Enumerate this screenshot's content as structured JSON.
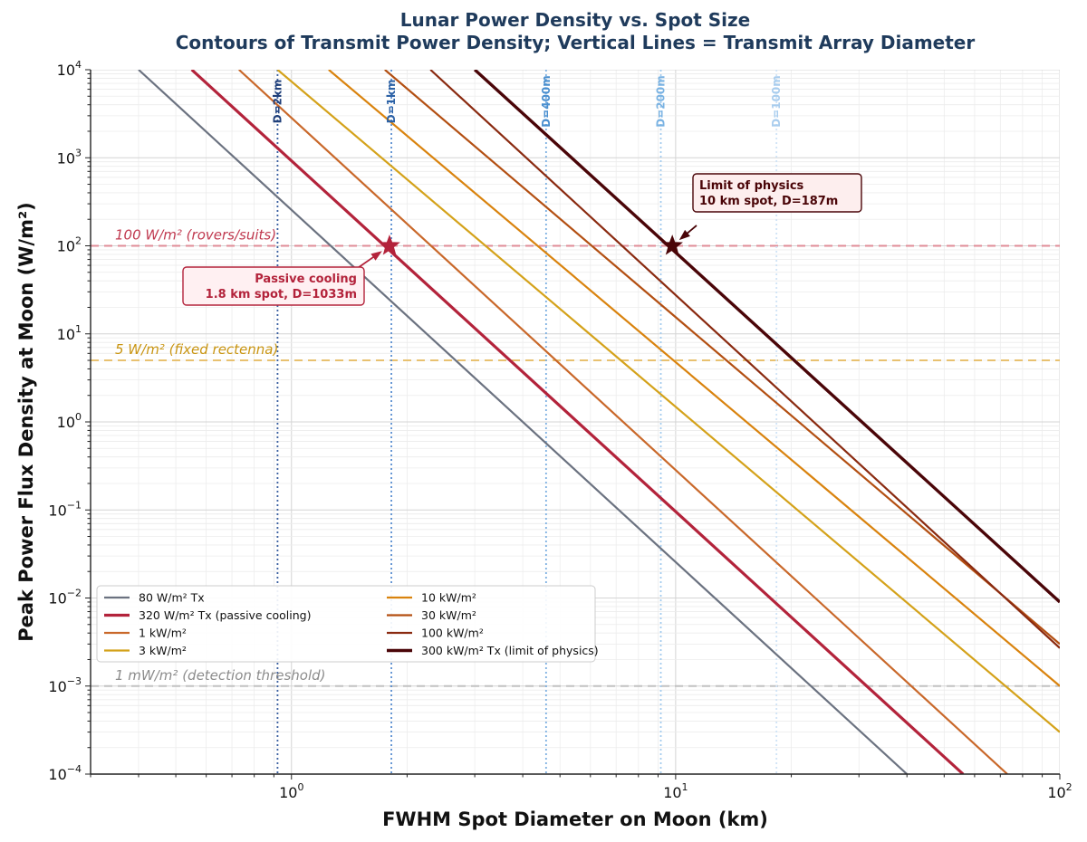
{
  "colors": {
    "title": "#1f3b5c",
    "grid_major": "#d4d4d4",
    "grid_minor": "#ececec"
  },
  "chart_data": {
    "type": "line",
    "title": "Lunar Power Density vs. Spot Size",
    "subtitle": "Contours of Transmit Power Density; Vertical Lines = Transmit Array Diameter",
    "xlabel": "FWHM Spot Diameter on Moon (km)",
    "ylabel": "Peak Power Flux Density at Moon (W/m²)",
    "xscale": "log",
    "yscale": "log",
    "xlim": [
      0.3,
      100
    ],
    "ylim": [
      0.0001,
      10000
    ],
    "grid": true,
    "legend_position": "lower-left",
    "x_ticks": [
      {
        "value": 1,
        "base": "10",
        "exp": "0"
      },
      {
        "value": 10,
        "base": "10",
        "exp": "1"
      },
      {
        "value": 100,
        "base": "10",
        "exp": "2"
      }
    ],
    "y_ticks": [
      {
        "value": 0.0001,
        "base": "10",
        "exp": "−4"
      },
      {
        "value": 0.001,
        "base": "10",
        "exp": "−3"
      },
      {
        "value": 0.01,
        "base": "10",
        "exp": "−2"
      },
      {
        "value": 0.1,
        "base": "10",
        "exp": "−1"
      },
      {
        "value": 1,
        "base": "10",
        "exp": "0"
      },
      {
        "value": 10,
        "base": "10",
        "exp": "1"
      },
      {
        "value": 100,
        "base": "10",
        "exp": "2"
      },
      {
        "value": 1000,
        "base": "10",
        "exp": "3"
      },
      {
        "value": 10000,
        "base": "10",
        "exp": "4"
      }
    ],
    "series": [
      {
        "name": "80 W/m² Tx",
        "color": "#6b7280",
        "width": 2.2,
        "points": [
          [
            0.4,
            10000
          ],
          [
            40,
            0.0001
          ]
        ]
      },
      {
        "name": "320 W/m² Tx (passive cooling)",
        "color": "#b3233b",
        "width": 3.2,
        "points": [
          [
            0.55,
            10000
          ],
          [
            56,
            0.0001
          ]
        ]
      },
      {
        "name": "1 kW/m²",
        "color": "#c9682a",
        "width": 2.2,
        "points": [
          [
            0.73,
            10000
          ],
          [
            73,
            0.0001
          ]
        ]
      },
      {
        "name": "3 kW/m²",
        "color": "#d4a21a",
        "width": 2.2,
        "points": [
          [
            0.92,
            10000
          ],
          [
            100,
            0.0003
          ]
        ]
      },
      {
        "name": "10 kW/m²",
        "color": "#d9830e",
        "width": 2.2,
        "points": [
          [
            1.25,
            10000
          ],
          [
            100,
            0.001
          ]
        ]
      },
      {
        "name": "30 kW/m²",
        "color": "#b34f12",
        "width": 2.2,
        "points": [
          [
            1.75,
            10000
          ],
          [
            100,
            0.003
          ]
        ]
      },
      {
        "name": "100 kW/m²",
        "color": "#8a2a10",
        "width": 2.2,
        "points": [
          [
            2.3,
            10000
          ],
          [
            100,
            0.0027
          ]
        ]
      },
      {
        "name": "300 kW/m² Tx (limit of physics)",
        "color": "#4a0508",
        "width": 3.4,
        "points": [
          [
            3.0,
            10000
          ],
          [
            100,
            0.009
          ]
        ]
      }
    ],
    "reference_lines": [
      {
        "y": 100,
        "label": "100 W/m² (rovers/suits)",
        "color": "#c0394f",
        "line_color": "#e08d97"
      },
      {
        "y": 5,
        "label": "5 W/m² (fixed rectenna)",
        "color": "#c99512",
        "line_color": "#e8c170"
      },
      {
        "y": 0.001,
        "label": "1 mW/m² (detection threshold)",
        "color": "#8c8c8c",
        "line_color": "#c2c2c2"
      }
    ],
    "array_lines": [
      {
        "x": 0.92,
        "label": "D=2km",
        "color": "#1f3f7a",
        "line_color": "#3a5fa0"
      },
      {
        "x": 1.82,
        "label": "D=1km",
        "color": "#2d62a6",
        "line_color": "#5b8fd0"
      },
      {
        "x": 4.6,
        "label": "D=400m",
        "color": "#4a8fcf",
        "line_color": "#7fb1e2"
      },
      {
        "x": 9.15,
        "label": "D=200m",
        "color": "#7ab3e3",
        "line_color": "#a3cbee"
      },
      {
        "x": 18.3,
        "label": "D=100m",
        "color": "#a9cdee",
        "line_color": "#cfe3f6"
      }
    ],
    "annotations": [
      {
        "lines": [
          "Passive cooling",
          "1.8 km spot, D=1033m"
        ],
        "point": [
          1.8,
          100
        ],
        "color": "#b3233b",
        "fill": "#fff0f2",
        "anchor": "below-left"
      },
      {
        "lines": [
          "Limit of physics",
          "10 km spot, D=187m"
        ],
        "point": [
          9.8,
          100
        ],
        "color": "#4a0508",
        "fill": "#fdeeee",
        "anchor": "above-right"
      }
    ]
  }
}
